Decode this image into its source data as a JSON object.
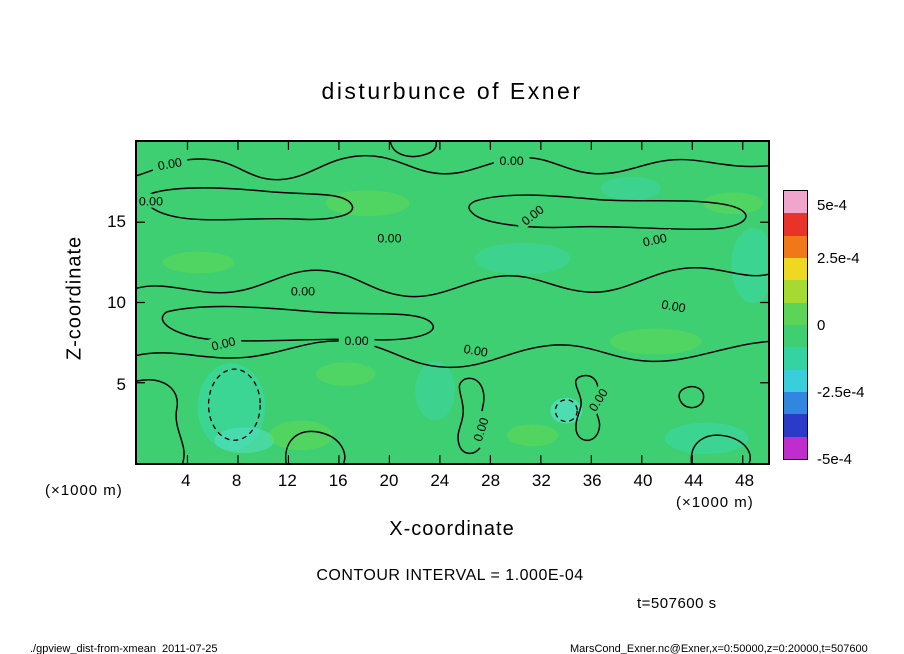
{
  "page_title": "disturbunce of Exner",
  "chart_data": {
    "type": "contour",
    "title": "disturbunce of Exner",
    "xlabel": "X-coordinate",
    "ylabel": "Z-coordinate",
    "axis_unit": "(×1000 m)",
    "xlim": [
      0,
      50
    ],
    "ylim": [
      0,
      20
    ],
    "x_ticks": [
      4,
      8,
      12,
      16,
      20,
      24,
      28,
      32,
      36,
      40,
      44,
      48
    ],
    "y_ticks": [
      15,
      10,
      5
    ],
    "contour_label": "0.00",
    "contour_interval": 0.0001,
    "contour_interval_text": "CONTOUR INTERVAL = 1.000E-04",
    "time_label": "t=507600 s",
    "field_background_color": "#3ECF72",
    "colorbar": {
      "range": [
        -0.0005,
        0.0005
      ],
      "tick_labels": [
        "5e-4",
        "2.5e-4",
        "0",
        "-2.5e-4",
        "-5e-4"
      ],
      "colors_top_to_bottom": [
        "#F2A5CC",
        "#E8332A",
        "#F07818",
        "#EFD824",
        "#A6DA30",
        "#5BD457",
        "#3ECF72",
        "#35D2A2",
        "#38CEDC",
        "#3186E0",
        "#2B3BC8",
        "#BF2ECC"
      ]
    }
  },
  "footer": {
    "left": "./gpview_dist-from-xmean  2011-07-25",
    "right": "MarsCond_Exner.nc@Exner,x=0:50000,z=0:20000,t=507600"
  }
}
